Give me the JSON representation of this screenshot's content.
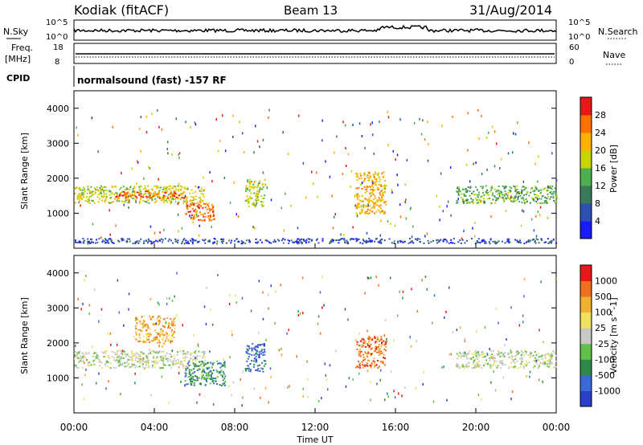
{
  "header": {
    "title": "Kodiak (fitACF)",
    "beam": "Beam 13",
    "date": "31/Aug/2014"
  },
  "top_panels": {
    "nsky_label": "N.Sky",
    "nsky_tick_hi": "10^5",
    "nsky_tick_lo": "10^0",
    "nsearch_label": "N.Search",
    "freq_label_1": "Freq.",
    "freq_label_2": "[MHz]",
    "freq_tick_hi": "18",
    "freq_tick_lo": "8",
    "nave_label": "Nave",
    "nave_tick_hi": "60",
    "nave_tick_lo": "0",
    "cpid_label": "CPID",
    "cpid_text": "normalsound (fast) -157 RF"
  },
  "colors": {
    "power": [
      "#1a1aff",
      "#2e4fb4",
      "#3a7a5a",
      "#4caf50",
      "#c8d400",
      "#ffb000",
      "#ff7000",
      "#e81818"
    ],
    "velocity": [
      "#2a3fc8",
      "#3a6ad8",
      "#2f8a4a",
      "#5fc04a",
      "#c8c8c8",
      "#f0e060",
      "#f0b030",
      "#f07020",
      "#e81818"
    ]
  },
  "chart_data": [
    {
      "type": "heatmap",
      "name_panel": "power",
      "ylabel": "Slant Range [km]",
      "ylim": [
        0,
        4500
      ],
      "yticks": [
        "1000",
        "2000",
        "3000",
        "4000"
      ],
      "xlim": [
        "00:00",
        "24:00"
      ],
      "colorbar_label": "Power [dB]",
      "colorbar_ticks": [
        "4",
        "8",
        "12",
        "16",
        "20",
        "24",
        "28"
      ],
      "features": [
        {
          "t0": 0.0,
          "t1": 6.5,
          "r0": 1300,
          "r1": 1800,
          "level": 4
        },
        {
          "t0": 2.0,
          "t1": 5.5,
          "r0": 1450,
          "r1": 1650,
          "level": 6
        },
        {
          "t0": 5.5,
          "t1": 7.0,
          "r0": 800,
          "r1": 1300,
          "level": 6
        },
        {
          "t0": 8.5,
          "t1": 9.5,
          "r0": 1200,
          "r1": 2000,
          "level": 4
        },
        {
          "t0": 14.0,
          "t1": 15.5,
          "r0": 1000,
          "r1": 2200,
          "level": 5
        },
        {
          "t0": 19.0,
          "t1": 24.0,
          "r0": 1300,
          "r1": 1800,
          "level": 3
        },
        {
          "t0": 0.0,
          "t1": 24.0,
          "r0": 150,
          "r1": 300,
          "level": 1
        }
      ]
    },
    {
      "type": "heatmap",
      "name_panel": "velocity",
      "ylabel": "Slant Range [km]",
      "ylim": [
        0,
        4500
      ],
      "yticks": [
        "1000",
        "2000",
        "3000",
        "4000"
      ],
      "xlim": [
        "00:00",
        "24:00"
      ],
      "xticks": [
        "00:00",
        "04:00",
        "08:00",
        "12:00",
        "16:00",
        "20:00",
        "00:00"
      ],
      "xlabel": "Time UT",
      "colorbar_label": "Velocity [m s^-1]",
      "colorbar_ticks": [
        "1000",
        "500",
        "100",
        "25",
        "-25",
        "-100",
        "-500",
        "-1000"
      ],
      "features": [
        {
          "t0": 0.0,
          "t1": 6.5,
          "r0": 1300,
          "r1": 1800,
          "level": 4
        },
        {
          "t0": 5.5,
          "t1": 7.5,
          "r0": 800,
          "r1": 1500,
          "level": 2
        },
        {
          "t0": 8.5,
          "t1": 9.5,
          "r0": 1200,
          "r1": 2000,
          "level": 1
        },
        {
          "t0": 14.0,
          "t1": 15.5,
          "r0": 1300,
          "r1": 2200,
          "level": 7
        },
        {
          "t0": 19.0,
          "t1": 24.0,
          "r0": 1300,
          "r1": 1800,
          "level": 4
        },
        {
          "t0": 3.0,
          "t1": 5.0,
          "r0": 2000,
          "r1": 2800,
          "level": 6
        }
      ]
    }
  ]
}
